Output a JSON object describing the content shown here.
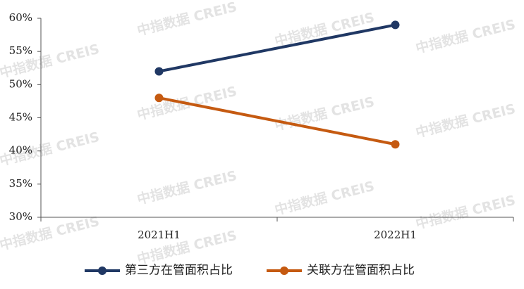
{
  "chart_data": {
    "type": "line",
    "categories": [
      "2021H1",
      "2022H1"
    ],
    "series": [
      {
        "name": "第三方在管面积占比",
        "color": "#203864",
        "values": [
          52,
          59
        ]
      },
      {
        "name": "关联方在管面积占比",
        "color": "#c55a11",
        "values": [
          48,
          41
        ]
      }
    ],
    "ylim": [
      30,
      60
    ],
    "yticks": [
      {
        "value": 30,
        "label": "30%"
      },
      {
        "value": 35,
        "label": "35%"
      },
      {
        "value": 40,
        "label": "40%"
      },
      {
        "value": 45,
        "label": "45%"
      },
      {
        "value": 50,
        "label": "50%"
      },
      {
        "value": 55,
        "label": "55%"
      },
      {
        "value": 60,
        "label": "60%"
      }
    ],
    "legend": "bottom",
    "watermark": "中指数据 CREIS"
  }
}
